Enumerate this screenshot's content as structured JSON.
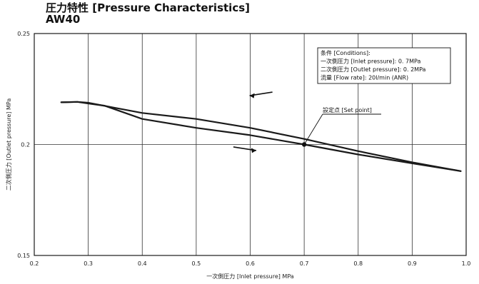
{
  "chart_data": {
    "type": "line",
    "title": "圧力特性 [Pressure Characteristics]",
    "subtitle": "AW40",
    "xlabel": "一次側圧力 [Inlet pressure] MPa",
    "ylabel": "二次側圧力 [Outlet pressure] MPa",
    "xlim": [
      0.2,
      1.0
    ],
    "ylim": [
      0.15,
      0.25
    ],
    "x_ticks": [
      "0.2",
      "0.3",
      "0.4",
      "0.5",
      "0.6",
      "0.7",
      "0.8",
      "0.9",
      "1.0"
    ],
    "y_ticks": [
      "0.25",
      "0.2",
      "0.15"
    ],
    "grid": "vertical",
    "series": [
      {
        "values": [
          [
            0.25,
            0.219
          ],
          [
            0.28,
            0.2192
          ],
          [
            0.3,
            0.2188
          ],
          [
            0.35,
            0.2165
          ],
          [
            0.4,
            0.2142
          ],
          [
            0.5,
            0.2115
          ],
          [
            0.6,
            0.2075
          ],
          [
            0.7,
            0.2025
          ],
          [
            0.8,
            0.197
          ],
          [
            0.9,
            0.192
          ],
          [
            0.99,
            0.188
          ]
        ]
      },
      {
        "values": [
          [
            0.25,
            0.219
          ],
          [
            0.28,
            0.2192
          ],
          [
            0.3,
            0.2185
          ],
          [
            0.33,
            0.2175
          ],
          [
            0.4,
            0.2115
          ],
          [
            0.5,
            0.2075
          ],
          [
            0.6,
            0.2042
          ],
          [
            0.7,
            0.2
          ],
          [
            0.8,
            0.1955
          ],
          [
            0.9,
            0.1915
          ],
          [
            0.99,
            0.188
          ]
        ]
      }
    ],
    "set_point": {
      "x": 0.7,
      "y": 0.2,
      "label": "設定点 [Set point]"
    },
    "conditions": [
      "条件 [Conditions]:",
      "一次側圧力 [Inlet pressure]: 0. 7MPa",
      "二次側圧力 [Outlet pressure]: 0. 2MPa",
      "流量 [Flow rate]: 20l/min (ANR)"
    ],
    "arrows": [
      {
        "direction": "left",
        "x": 0.62,
        "y": 0.2228
      },
      {
        "direction": "right",
        "x": 0.59,
        "y": 0.1981
      }
    ],
    "colors": {
      "line": "#1a1a1a",
      "grid": "#333333"
    }
  }
}
